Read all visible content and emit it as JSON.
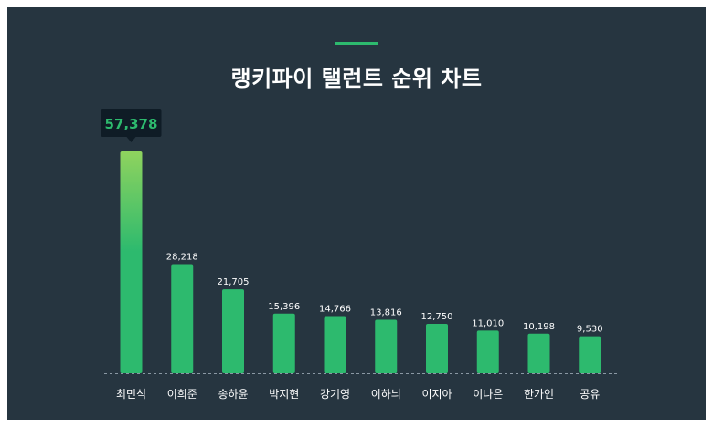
{
  "title": "랭키파이 탤런트 순위 차트",
  "colors": {
    "background": "#263540",
    "accent": "#2dba6e",
    "bar": "#2dba6e",
    "bar_top_highlight": "#8fd35e",
    "tooltip_bg": "#0f1c26",
    "tooltip_text": "#2dba6e",
    "text": "#ffffff"
  },
  "chart_data": {
    "type": "bar",
    "title": "랭키파이 탤런트 순위 차트",
    "categories": [
      "최민식",
      "이희준",
      "송하윤",
      "박지현",
      "강기영",
      "이하늬",
      "이지아",
      "이나은",
      "한가인",
      "공유"
    ],
    "values": [
      57378,
      28218,
      21705,
      15396,
      14766,
      13816,
      12750,
      11010,
      10198,
      9530
    ],
    "value_labels": [
      "57,378",
      "28,218",
      "21,705",
      "15,396",
      "14,766",
      "13,816",
      "12,750",
      "11,010",
      "10,198",
      "9,530"
    ],
    "ylim": [
      0,
      57378
    ],
    "grid": false,
    "legend": "none",
    "highlight_index": 0
  }
}
